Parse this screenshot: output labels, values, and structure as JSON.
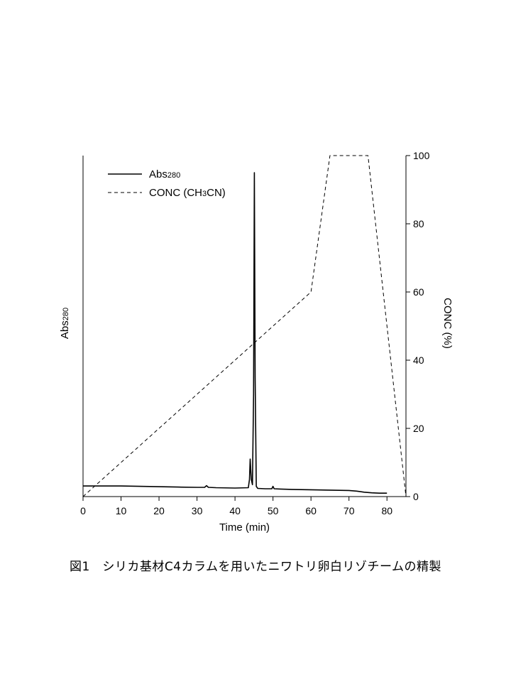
{
  "caption": "図1　シリカ基材C4カラムを用いたニワトリ卵白リゾチームの精製",
  "chart_data": {
    "type": "line",
    "title": "",
    "xlabel": "Time (min)",
    "ylabel_left": {
      "main": "Abs",
      "sub": "280"
    },
    "ylabel_right": "CONC (%)",
    "xlim": [
      0,
      85
    ],
    "xticks": [
      0,
      10,
      20,
      30,
      40,
      50,
      60,
      70,
      80
    ],
    "ylim_left": [
      0,
      1
    ],
    "ylim_right": [
      0,
      100
    ],
    "yticks_right": [
      0,
      20,
      40,
      60,
      80,
      100
    ],
    "legend_position": "top-left",
    "legend": [
      {
        "parts": [
          {
            "t": "Abs"
          },
          {
            "t": "280",
            "sub": true
          }
        ],
        "style": "solid"
      },
      {
        "parts": [
          {
            "t": "CONC (CH"
          },
          {
            "t": "3",
            "sub": true
          },
          {
            "t": "CN)"
          }
        ],
        "style": "dashed"
      }
    ],
    "series": [
      {
        "style": "solid",
        "axis": "left",
        "x": [
          0,
          5,
          10,
          15,
          20,
          25,
          30,
          32.0,
          32.5,
          33.0,
          35,
          40,
          43.5,
          43.8,
          44.0,
          44.3,
          44.6,
          44.9,
          45.1,
          45.3,
          45.6,
          46.0,
          48,
          49.7,
          50.0,
          50.3,
          52,
          55,
          60,
          65,
          70,
          72,
          74,
          76,
          78,
          79.5,
          80
        ],
        "y": [
          0.031,
          0.031,
          0.031,
          0.03,
          0.029,
          0.028,
          0.027,
          0.027,
          0.032,
          0.027,
          0.026,
          0.025,
          0.026,
          0.05,
          0.11,
          0.05,
          0.035,
          0.3,
          0.95,
          0.35,
          0.03,
          0.024,
          0.023,
          0.023,
          0.03,
          0.023,
          0.022,
          0.021,
          0.02,
          0.019,
          0.018,
          0.016,
          0.013,
          0.011,
          0.01,
          0.01,
          0.01
        ]
      },
      {
        "style": "dashed",
        "axis": "right",
        "x": [
          0,
          60,
          65,
          75,
          85
        ],
        "y": [
          0,
          60,
          100,
          100,
          0
        ]
      }
    ]
  }
}
